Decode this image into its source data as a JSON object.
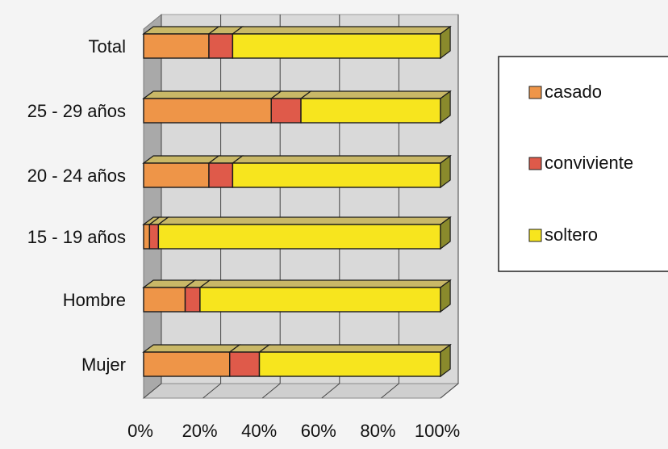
{
  "chart_data": {
    "type": "bar",
    "orientation": "horizontal",
    "stacked": true,
    "percent": true,
    "three_d": true,
    "categories": [
      "Total",
      "25 - 29 años",
      "20 - 24 años",
      "15 - 19 años",
      "Hombre",
      "Mujer"
    ],
    "series": [
      {
        "name": "casado",
        "values": [
          22,
          43,
          22,
          2,
          14,
          29
        ],
        "color": "#ee9548"
      },
      {
        "name": "conviviente",
        "values": [
          8,
          10,
          8,
          3,
          5,
          10
        ],
        "color": "#df5a4a"
      },
      {
        "name": "soltero",
        "values": [
          70,
          47,
          70,
          95,
          81,
          61
        ],
        "color": "#f7e51e"
      }
    ],
    "x_ticks": [
      "0%",
      "20%",
      "40%",
      "60%",
      "80%",
      "100%"
    ],
    "xlim": [
      0,
      100
    ],
    "grid": true,
    "legend_position": "right",
    "colors": {
      "background": "#f4f4f4",
      "wall": "#d9d9d9",
      "wall_side": "#a9a9a9",
      "floor": "#cfcfcf",
      "gridline": "#444444",
      "bar_top": "#c9b867",
      "bar_end": "#8a8a2c",
      "outline": "#1a1a1a"
    }
  }
}
